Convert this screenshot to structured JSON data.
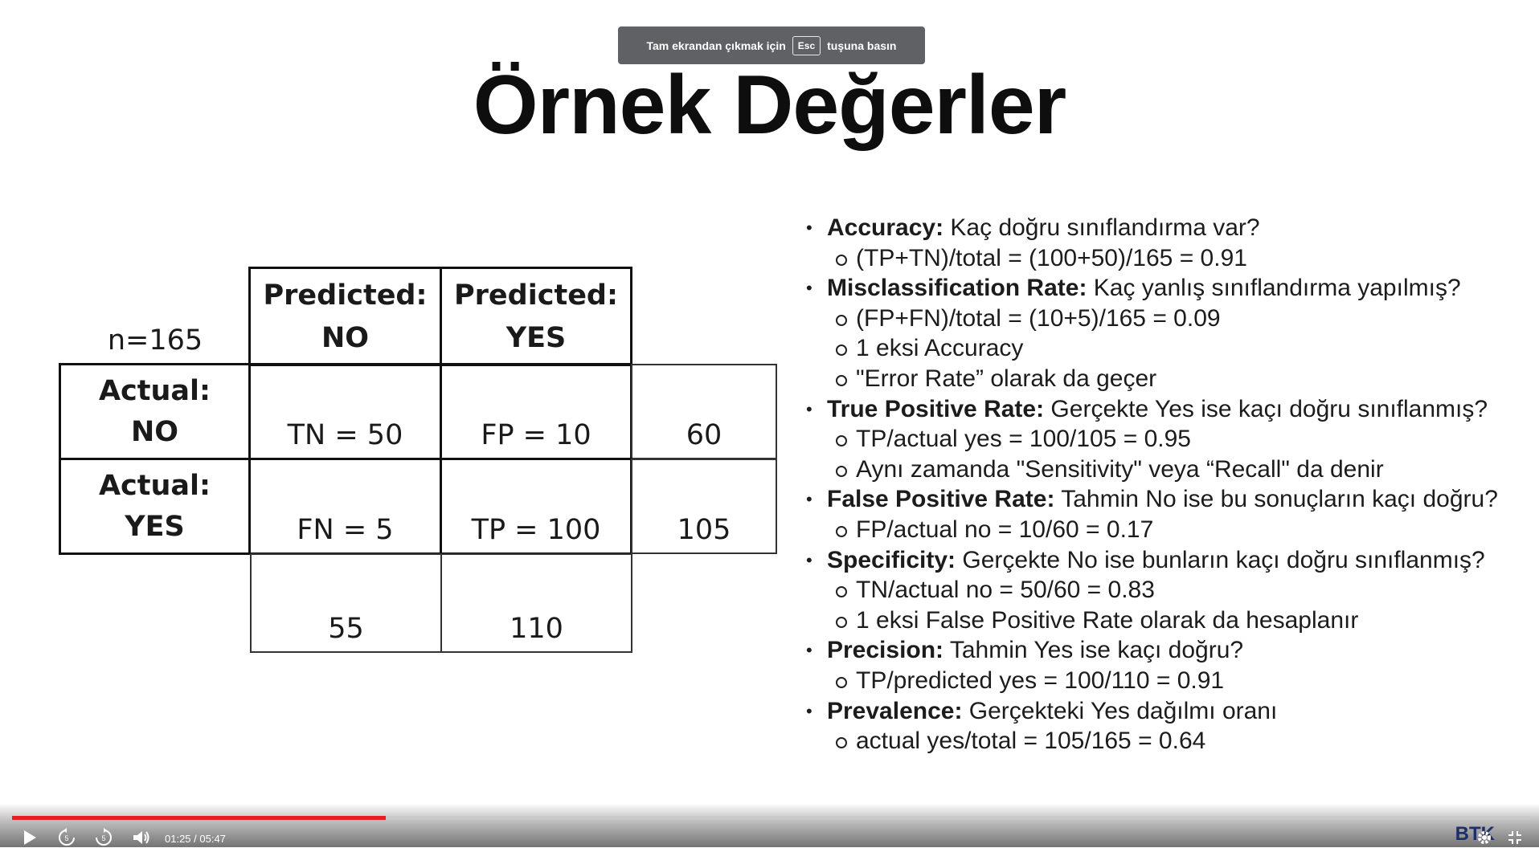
{
  "fullscreen_notice": {
    "before": "Tam ekrandan çıkmak için",
    "key": "Esc",
    "after": "tuşuna basın"
  },
  "slide": {
    "title": "Örnek Değerler",
    "matrix": {
      "n_label": "n=165",
      "pred_no": [
        "Predicted:",
        "NO"
      ],
      "pred_yes": [
        "Predicted:",
        "YES"
      ],
      "act_no": [
        "Actual:",
        "NO"
      ],
      "act_yes": [
        "Actual:",
        "YES"
      ],
      "tn": "TN = 50",
      "fp": "FP = 10",
      "fn": "FN = 5",
      "tp": "TP = 100",
      "row_no_total": "60",
      "row_yes_total": "105",
      "col_no_total": "55",
      "col_yes_total": "110"
    },
    "metrics": [
      {
        "term": "Accuracy:",
        "desc": " Kaç doğru sınıflandırma var?",
        "subs": [
          "(TP+TN)/total = (100+50)/165 = 0.91"
        ]
      },
      {
        "term": "Misclassification Rate:",
        "desc": " Kaç yanlış sınıflandırma yapılmış?",
        "subs": [
          "(FP+FN)/total = (10+5)/165 = 0.09",
          "1 eksi Accuracy",
          "\"Error Rate” olarak da geçer"
        ]
      },
      {
        "term": "True Positive Rate:",
        "desc": " Gerçekte Yes ise kaçı doğru sınıflanmış?",
        "subs": [
          "TP/actual yes = 100/105 = 0.95",
          "Aynı zamanda  \"Sensitivity\" veya “Recall\" da denir"
        ]
      },
      {
        "term": "False Positive Rate:",
        "desc": " Tahmin No ise bu sonuçların kaçı doğru?",
        "subs": [
          "FP/actual no = 10/60 = 0.17"
        ]
      },
      {
        "term": "Specificity:",
        "desc": " Gerçekte No ise bunların kaçı doğru sınıflanmış?",
        "subs": [
          "TN/actual no = 50/60 = 0.83",
          "1 eksi False Positive Rate olarak da hesaplanır"
        ]
      },
      {
        "term": "Precision:",
        "desc": " Tahmin Yes ise kaçı doğru?",
        "subs": [
          "TP/predicted yes = 100/110 = 0.91"
        ]
      },
      {
        "term": "Prevalence:",
        "desc": " Gerçekteki Yes dağılmı oranı",
        "subs": [
          "actual yes/total = 105/165 = 0.64"
        ]
      }
    ]
  },
  "player": {
    "time": "01:25 / 05:47",
    "progress_fraction": 0.246,
    "rewind_label": "5",
    "forward_label": "5",
    "brand": "BTK",
    "accent_color": "#e3202a"
  }
}
